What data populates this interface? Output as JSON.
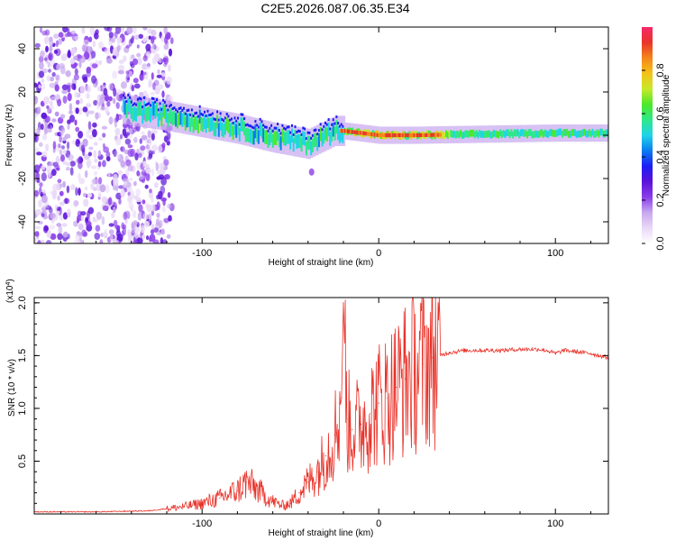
{
  "page": {
    "title": "C2E5.2026.087.06.35.E34"
  },
  "colors": {
    "snr_line": "#e8332a",
    "spectrogram_colormap": [
      "#ffffff",
      "#e9d9f7",
      "#c8a8ef",
      "#8a3dea",
      "#5b12d8",
      "#1d1df5",
      "#0a7df0",
      "#1fd4e8",
      "#2ee88a",
      "#4de82a",
      "#c7e82a",
      "#f5c21a",
      "#f5861a",
      "#e8332a",
      "#f52a6a"
    ]
  },
  "chart_data": [
    {
      "type": "heatmap",
      "title": "",
      "xlabel": "Height of straight line (km)",
      "ylabel": "Frequency (Hz)",
      "xlim": [
        -195,
        130
      ],
      "ylim": [
        -50,
        50
      ],
      "xticks": [
        -100,
        0,
        100
      ],
      "yticks": [
        -40,
        -20,
        0,
        20,
        40
      ],
      "colorbar": {
        "label": "Normalized spectral amplitude",
        "range": [
          0,
          1
        ],
        "ticks": [
          0.0,
          0.2,
          0.4,
          0.6,
          0.8
        ],
        "tick_labels": [
          "0.0",
          "0.2",
          "0.4",
          "0.6",
          "0.8"
        ]
      },
      "ridge": {
        "description_points_x": [
          -145,
          -120,
          -100,
          -80,
          -60,
          -40,
          -25,
          -20,
          0,
          20,
          60,
          100,
          130
        ],
        "frequency_hz": [
          12,
          9,
          6,
          3,
          -1,
          -4,
          2,
          2,
          0,
          0,
          0.5,
          1,
          1
        ]
      },
      "noise_region_x": [
        -195,
        -125
      ]
    },
    {
      "type": "line",
      "title": "",
      "xlabel": "Height of straight line (km)",
      "ylabel": "SNR (10 * v/v)",
      "ylabel_multiplier": "(x10",
      "ylabel_multiplier_exp": "4",
      "xlim": [
        -195,
        130
      ],
      "ylim": [
        0,
        2.05
      ],
      "xticks": [
        -100,
        0,
        100
      ],
      "yticks": [
        0.5,
        1.0,
        1.5,
        2.0
      ],
      "ytick_labels": [
        "0.5",
        "1.0",
        "1.5",
        "2.0"
      ],
      "series": [
        {
          "name": "SNR",
          "x": [
            -195,
            -160,
            -130,
            -120,
            -110,
            -100,
            -90,
            -80,
            -75,
            -70,
            -65,
            -60,
            -55,
            -50,
            -45,
            -40,
            -35,
            -30,
            -25,
            -21,
            -20,
            -18,
            -15,
            -10,
            -5,
            0,
            5,
            10,
            15,
            20,
            25,
            30,
            40,
            50,
            60,
            70,
            80,
            90,
            95,
            100,
            105,
            110,
            120,
            130
          ],
          "values": [
            0.02,
            0.02,
            0.03,
            0.05,
            0.07,
            0.1,
            0.15,
            0.22,
            0.3,
            0.25,
            0.18,
            0.12,
            0.08,
            0.1,
            0.2,
            0.3,
            0.4,
            0.55,
            0.75,
            1.1,
            2.0,
            0.9,
            0.8,
            0.85,
            0.95,
            1.05,
            1.1,
            1.2,
            1.28,
            1.35,
            1.42,
            1.48,
            1.53,
            1.55,
            1.55,
            1.55,
            1.56,
            1.56,
            1.55,
            1.52,
            1.55,
            1.54,
            1.52,
            1.48
          ]
        }
      ]
    }
  ]
}
